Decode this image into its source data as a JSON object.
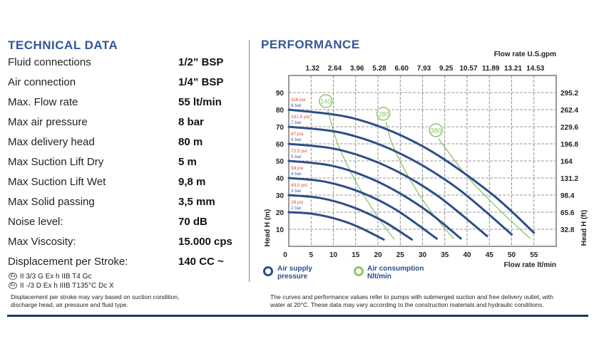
{
  "technical": {
    "title": "TECHNICAL DATA",
    "rows": [
      {
        "label": "Fluid connections",
        "value": "1/2” BSP"
      },
      {
        "label": "Air connection",
        "value": "1/4” BSP"
      },
      {
        "label": "Max. Flow rate",
        "value": "55 lt/min"
      },
      {
        "label": "Max air pressure",
        "value": "8 bar"
      },
      {
        "label": "Max delivery head",
        "value": "80 m"
      },
      {
        "label": "Max Suction Lift Dry",
        "value": "5 m"
      },
      {
        "label": "Max Suction Lift Wet",
        "value": "9,8 m"
      },
      {
        "label": "Max Solid passing",
        "value": "3,5 mm"
      },
      {
        "label": "Noise level:",
        "value": "70 dB"
      },
      {
        "label": "Max Viscosity:",
        "value": "15.000 cps"
      },
      {
        "label": "Displacement per Stroke:",
        "value": "140 CC ~"
      }
    ],
    "atex": [
      "II 3/3 G Ex h IIB T4 Gc",
      "II -/3 D Ex h IIIB T135°C Dc X"
    ],
    "atex_symbol": "Ex",
    "note_lines": [
      "Displacement per stroke may vary based on suction condition,",
      "discharge head, air pressure and fluid type."
    ]
  },
  "performance": {
    "title": "PERFORMANCE",
    "note_lines": [
      "The curves and performance values refer to pumps with submerged suction and free delivery outlet, with",
      "water at 20°C. These data may vary according to the construction materials and hydraulic conditions."
    ]
  },
  "colors": {
    "title": "#34579a",
    "pressure_curve": "#2d4d8a",
    "air_curve": "#8cc56a",
    "psi_label": "#d9413a",
    "bar_label": "#3b5ea8"
  },
  "chart_data": {
    "type": "line",
    "xlabel": "Flow rate  lt/min",
    "ylabel": "Head H (m)",
    "ylabel_right": "Head H (ft)",
    "xlabel_top": "Flow rate U.S.gpm",
    "xlim": [
      0,
      60
    ],
    "ylim": [
      0,
      100
    ],
    "grid": true,
    "x_ticks": [
      "0",
      "5",
      "10",
      "15",
      "20",
      "25",
      "30",
      "35",
      "40",
      "45",
      "50",
      "55"
    ],
    "x_tick_values": [
      0,
      5,
      10,
      15,
      20,
      25,
      30,
      35,
      40,
      45,
      50,
      55
    ],
    "top_ticks": [
      "1.32",
      "2.64",
      "3.96",
      "5.28",
      "6.60",
      "7.93",
      "9.25",
      "10.57",
      "11.89",
      "13.21",
      "14.53"
    ],
    "top_tick_values": [
      5,
      10,
      15,
      20,
      25,
      30,
      35,
      40,
      45,
      50,
      55
    ],
    "y_ticks": [
      "10",
      "20",
      "30",
      "40",
      "50",
      "60",
      "70",
      "80",
      "90"
    ],
    "y_tick_values": [
      10,
      20,
      30,
      40,
      50,
      60,
      70,
      80,
      90
    ],
    "right_ticks": [
      "32.8",
      "65.6",
      "98.4",
      "131.2",
      "164",
      "196.8",
      "229.6",
      "262.4",
      "295.2"
    ],
    "legend": [
      {
        "label_lines": [
          "Air supply",
          "pressure"
        ],
        "kind": "pressure"
      },
      {
        "label_lines": [
          "Air consumption",
          "Nlt/min"
        ],
        "kind": "air"
      }
    ],
    "pressure_series": [
      {
        "bar": "8 bar",
        "psi": "116 psi",
        "points": [
          [
            0,
            80
          ],
          [
            15,
            74.6
          ],
          [
            30,
            58.6
          ],
          [
            45,
            31.8
          ],
          [
            55,
            8
          ]
        ]
      },
      {
        "bar": "7 bar",
        "psi": "101.5 psi",
        "points": [
          [
            0,
            70
          ],
          [
            12.5,
            66.1
          ],
          [
            25,
            54.3
          ],
          [
            37.5,
            34.6
          ],
          [
            50,
            7
          ]
        ]
      },
      {
        "bar": "6 bar",
        "psi": "87 psi",
        "points": [
          [
            0,
            60
          ],
          [
            11,
            56.7
          ],
          [
            22,
            46.8
          ],
          [
            33,
            30.3
          ],
          [
            44.5,
            6
          ]
        ]
      },
      {
        "bar": "5 bar",
        "psi": "72.5 psi",
        "points": [
          [
            0,
            50
          ],
          [
            10,
            47
          ],
          [
            20,
            37.8
          ],
          [
            30,
            22.6
          ],
          [
            38.6,
            4.6
          ]
        ]
      },
      {
        "bar": "4 bar",
        "psi": "58 psi",
        "points": [
          [
            0,
            40
          ],
          [
            8,
            37.9
          ],
          [
            16,
            31.8
          ],
          [
            24,
            21.5
          ],
          [
            33.2,
            4.5
          ]
        ]
      },
      {
        "bar": "3 bar",
        "psi": "43.5 psi",
        "points": [
          [
            0,
            30
          ],
          [
            7,
            28.3
          ],
          [
            14,
            23.3
          ],
          [
            21,
            15
          ],
          [
            27.6,
            4
          ]
        ]
      },
      {
        "bar": "2 bar",
        "psi": "29 psi",
        "points": [
          [
            0,
            20
          ],
          [
            5,
            19.1
          ],
          [
            10,
            16.5
          ],
          [
            15,
            12.1
          ],
          [
            21.3,
            4
          ]
        ]
      }
    ],
    "air_series": [
      {
        "label": "140",
        "marker": [
          8.3,
          85
        ],
        "points": [
          [
            8.7,
            80
          ],
          [
            11,
            60
          ],
          [
            15,
            38
          ],
          [
            20,
            17
          ],
          [
            23.7,
            4
          ]
        ]
      },
      {
        "label": "280",
        "marker": [
          21.2,
          77.6
        ],
        "points": [
          [
            21.8,
            73
          ],
          [
            23.2,
            60
          ],
          [
            27,
            40
          ],
          [
            32,
            20
          ],
          [
            37,
            4.5
          ]
        ]
      },
      {
        "label": "380",
        "marker": [
          33,
          68
        ],
        "points": [
          [
            33.6,
            63
          ],
          [
            35,
            58
          ],
          [
            40,
            41
          ],
          [
            47,
            22
          ],
          [
            54.2,
            4.5
          ]
        ]
      }
    ]
  }
}
